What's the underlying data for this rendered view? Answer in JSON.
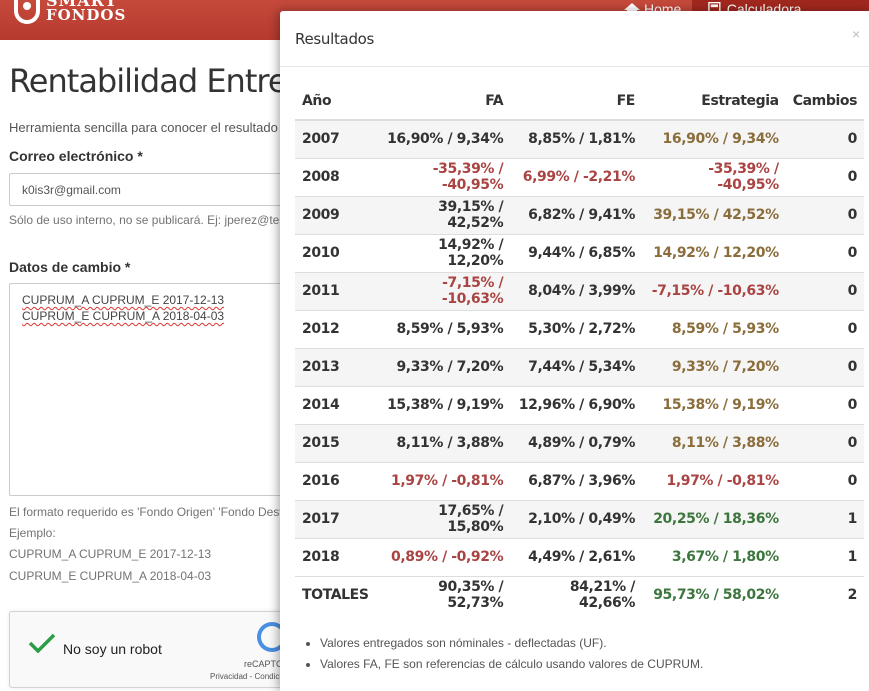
{
  "nav": {
    "logo_line1": "SMART",
    "logo_line2": "FONDOS",
    "home": "Home",
    "active": "Calculadora Rentabilidad"
  },
  "page": {
    "title": "Rentabilidad Entre Fondos",
    "lead": "Herramienta sencilla para conocer el resultado de tus cambios",
    "email_label": "Correo electrónico *",
    "email_value": "k0is3r@gmail.com",
    "email_help": "Sólo de uso interno, no se publicará. Ej: jperez@test.cl",
    "changes_label": "Datos de cambio *",
    "changes_lines": [
      "CUPRUM_A CUPRUM_E 2017-12-13",
      "CUPRUM_E CUPRUM_A 2018-04-03"
    ],
    "format_help": "El formato requerido es 'Fondo Origen' 'Fondo Destino'",
    "example_label": "Ejemplo:",
    "example_lines": [
      "CUPRUM_A CUPRUM_E 2017-12-13",
      "CUPRUM_E CUPRUM_A 2018-04-03"
    ]
  },
  "captcha": {
    "label": "No soy un robot",
    "brand": "reCAPTCHA",
    "links": "Privacidad - Condiciones"
  },
  "modal": {
    "title": "Resultados",
    "close": "×",
    "columns": [
      "Año",
      "FA",
      "FE",
      "Estrategia",
      "Cambios"
    ],
    "rows": [
      {
        "year": "2007",
        "fa": "16,90% / 9,34%",
        "fe": "8,85% / 1,81%",
        "st": "16,90% / 9,34%",
        "ch": "0"
      },
      {
        "year": "2008",
        "fa": "-35,39% / -40,95%",
        "fe": "6,99% / -2,21%",
        "st": "-35,39% / -40,95%",
        "ch": "0"
      },
      {
        "year": "2009",
        "fa": "39,15% / 42,52%",
        "fe": "6,82% / 9,41%",
        "st": "39,15% / 42,52%",
        "ch": "0"
      },
      {
        "year": "2010",
        "fa": "14,92% / 12,20%",
        "fe": "9,44% / 6,85%",
        "st": "14,92% / 12,20%",
        "ch": "0"
      },
      {
        "year": "2011",
        "fa": "-7,15% / -10,63%",
        "fe": "8,04% / 3,99%",
        "st": "-7,15% / -10,63%",
        "ch": "0"
      },
      {
        "year": "2012",
        "fa": "8,59% / 5,93%",
        "fe": "5,30% / 2,72%",
        "st": "8,59% / 5,93%",
        "ch": "0"
      },
      {
        "year": "2013",
        "fa": "9,33% / 7,20%",
        "fe": "7,44% / 5,34%",
        "st": "9,33% / 7,20%",
        "ch": "0"
      },
      {
        "year": "2014",
        "fa": "15,38% / 9,19%",
        "fe": "12,96% / 6,90%",
        "st": "15,38% / 9,19%",
        "ch": "0"
      },
      {
        "year": "2015",
        "fa": "8,11% / 3,88%",
        "fe": "4,89% / 0,79%",
        "st": "8,11% / 3,88%",
        "ch": "0"
      },
      {
        "year": "2016",
        "fa": "1,97% / -0,81%",
        "fe": "6,87% / 3,96%",
        "st": "1,97% / -0,81%",
        "ch": "0"
      },
      {
        "year": "2017",
        "fa": "17,65% / 15,80%",
        "fe": "2,10% / 0,49%",
        "st": "20,25% / 18,36%",
        "ch": "1"
      },
      {
        "year": "2018",
        "fa": "0,89% / -0,92%",
        "fe": "4,49% / 2,61%",
        "st": "3,67% / 1,80%",
        "ch": "1"
      },
      {
        "year": "TOTALES",
        "fa": "90,35% / 52,73%",
        "fe": "84,21% / 42,66%",
        "st": "95,73% / 58,02%",
        "ch": "2"
      }
    ],
    "notes": [
      "Valores entregados son nóminales - deflectadas (UF).",
      "Valores FA, FE son referencias de cálculo usando valores de CUPRUM."
    ]
  },
  "colors": {
    "navbar": "#b63a2d",
    "nav_active": "#a1281e",
    "negative": "#a94442",
    "strategy": "#8a6d3b",
    "strategy_better": "#3c763d"
  }
}
